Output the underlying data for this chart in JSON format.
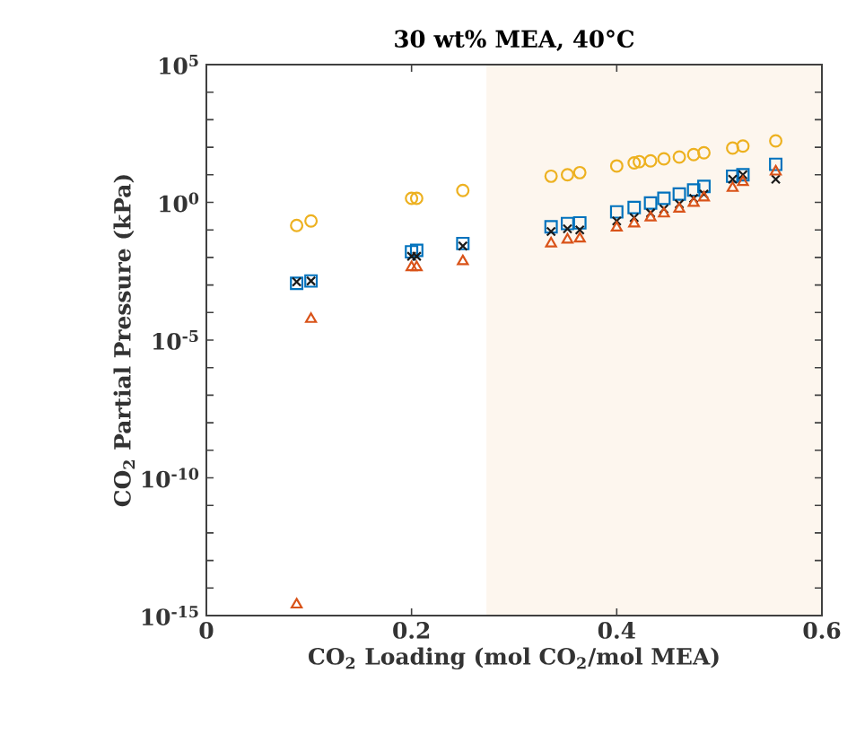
{
  "chart_data": {
    "type": "scatter",
    "title": "30 wt% MEA, 40°C",
    "xlabel": "CO$_{2}$ Loading (mol CO$_{2}$/mol MEA)",
    "ylabel": "CO$_{2}$ Partial Pressure (kPa)",
    "log": "y",
    "xlim": [
      0,
      0.6
    ],
    "ylim": [
      1e-15,
      100000.0
    ],
    "xticks": [
      0,
      0.2,
      0.4,
      0.6
    ],
    "yticks": [
      {
        "value": 1e-15,
        "label": "10$^{-15}$"
      },
      {
        "value": 1e-14,
        "label": null
      },
      {
        "value": 1e-13,
        "label": null
      },
      {
        "value": 1e-12,
        "label": null
      },
      {
        "value": 1e-11,
        "label": null
      },
      {
        "value": 1e-10,
        "label": "10$^{-10}$"
      },
      {
        "value": 1e-09,
        "label": null
      },
      {
        "value": 1e-08,
        "label": null
      },
      {
        "value": 1e-07,
        "label": null
      },
      {
        "value": 1e-06,
        "label": null
      },
      {
        "value": 1e-05,
        "label": "10$^{-5}$"
      },
      {
        "value": 0.0001,
        "label": null
      },
      {
        "value": 0.001,
        "label": null
      },
      {
        "value": 0.01,
        "label": null
      },
      {
        "value": 0.1,
        "label": null
      },
      {
        "value": 1,
        "label": "10$^{0}$"
      },
      {
        "value": 10,
        "label": null
      },
      {
        "value": 100,
        "label": null
      },
      {
        "value": 1000,
        "label": null
      },
      {
        "value": 10000,
        "label": null
      },
      {
        "value": 100000,
        "label": "10$^{5}$"
      }
    ],
    "bands": [
      {
        "axis": "x",
        "from": 0.273,
        "to": 0.6,
        "color": "#fdf6ee"
      }
    ],
    "series": [
      {
        "color": "#edb120",
        "marker": "circle",
        "x": [
          0.088,
          0.102,
          0.2,
          0.205,
          0.25,
          0.336,
          0.352,
          0.364,
          0.4,
          0.417,
          0.422,
          0.433,
          0.446,
          0.461,
          0.475,
          0.485,
          0.513,
          0.523,
          0.555
        ],
        "values": [
          0.145,
          0.21,
          1.4,
          1.4,
          2.7,
          8.9,
          10.0,
          12.0,
          21.0,
          27.0,
          30.0,
          32.0,
          38.0,
          44.0,
          54.0,
          63.0,
          93.0,
          110.0,
          170.0
        ]
      },
      {
        "color": "#0072bd",
        "marker": "square",
        "x": [
          0.088,
          0.102,
          0.2,
          0.205,
          0.25,
          0.336,
          0.352,
          0.364,
          0.4,
          0.417,
          0.433,
          0.446,
          0.461,
          0.475,
          0.485,
          0.513,
          0.523,
          0.555
        ],
        "values": [
          0.00115,
          0.0014,
          0.016,
          0.018,
          0.032,
          0.13,
          0.17,
          0.18,
          0.45,
          0.65,
          0.95,
          1.4,
          2.0,
          2.8,
          3.8,
          8.9,
          10.0,
          24.0
        ]
      },
      {
        "color": "#1a1a1a",
        "marker": "cross",
        "x": [
          0.088,
          0.102,
          0.2,
          0.205,
          0.25,
          0.336,
          0.352,
          0.364,
          0.4,
          0.417,
          0.433,
          0.446,
          0.461,
          0.475,
          0.485,
          0.513,
          0.523,
          0.555
        ],
        "values": [
          0.0013,
          0.0014,
          0.011,
          0.011,
          0.026,
          0.087,
          0.11,
          0.1,
          0.21,
          0.28,
          0.41,
          0.58,
          0.87,
          1.4,
          2.0,
          6.9,
          10.0,
          6.9
        ]
      },
      {
        "color": "#d95319",
        "marker": "triangle",
        "x": [
          0.088,
          0.102,
          0.2,
          0.205,
          0.25,
          0.336,
          0.352,
          0.364,
          0.4,
          0.417,
          0.433,
          0.446,
          0.461,
          0.475,
          0.485,
          0.513,
          0.523,
          0.555
        ],
        "values": [
          2.5e-15,
          5.8e-05,
          0.0044,
          0.0044,
          0.0072,
          0.032,
          0.044,
          0.048,
          0.12,
          0.17,
          0.28,
          0.39,
          0.58,
          0.95,
          1.5,
          3.3,
          5.4,
          13.0
        ]
      }
    ]
  }
}
